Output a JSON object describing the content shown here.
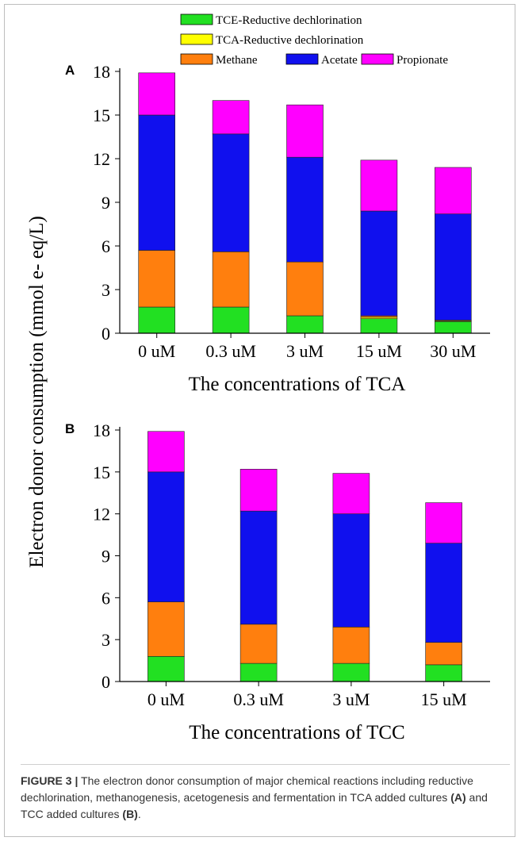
{
  "figure": {
    "y_axis_label": "Electron donor consumption (mmol e- eq/L)",
    "caption_label": "FIGURE 3 |",
    "caption_text_1": " The electron donor consumption of major chemical reactions including reductive dechlorination, methanogenesis, acetogenesis and fermentation in TCA added cultures ",
    "caption_ref_a": "(A)",
    "caption_text_2": " and TCC added cultures ",
    "caption_ref_b": "(B)",
    "caption_text_3": "."
  },
  "colors": {
    "TCE-Reductive dechlorination": "#22e022",
    "TCA-Reductive dechlorination": "#ffff00",
    "Methane": "#ff7f0e",
    "Acetate": "#1010ee",
    "Propionate": "#ff00ff"
  },
  "legend": [
    {
      "name": "TCE-Reductive dechlorination"
    },
    {
      "name": "TCA-Reductive dechlorination"
    },
    {
      "name": "Methane"
    },
    {
      "name": "Acetate"
    },
    {
      "name": "Propionate"
    }
  ],
  "chart_data": [
    {
      "type": "bar",
      "stacked": true,
      "panel_label": "A",
      "xlabel": "The concentrations of TCA",
      "categories": [
        "0 uM",
        "0.3 uM",
        "3 uM",
        "15 uM",
        "30 uM"
      ],
      "yticks": [
        "0",
        "3",
        "6",
        "9",
        "12",
        "15",
        "18"
      ],
      "ylim": [
        0,
        18
      ],
      "series": [
        {
          "name": "TCE-Reductive dechlorination",
          "values": [
            1.8,
            1.8,
            1.2,
            1.0,
            0.8
          ]
        },
        {
          "name": "TCA-Reductive dechlorination",
          "values": [
            0,
            0,
            0,
            0.1,
            0.05
          ]
        },
        {
          "name": "Methane",
          "values": [
            3.9,
            3.8,
            3.7,
            0.1,
            0.05
          ]
        },
        {
          "name": "Acetate",
          "values": [
            9.3,
            8.1,
            7.2,
            7.2,
            7.3
          ]
        },
        {
          "name": "Propionate",
          "values": [
            2.9,
            2.3,
            3.6,
            3.5,
            3.2
          ]
        }
      ]
    },
    {
      "type": "bar",
      "stacked": true,
      "panel_label": "B",
      "xlabel": "The concentrations of TCC",
      "categories": [
        "0 uM",
        "0.3 uM",
        "3 uM",
        "15 uM"
      ],
      "yticks": [
        "0",
        "3",
        "6",
        "9",
        "12",
        "15",
        "18"
      ],
      "ylim": [
        0,
        18
      ],
      "series": [
        {
          "name": "TCE-Reductive dechlorination",
          "values": [
            1.8,
            1.3,
            1.3,
            1.2
          ]
        },
        {
          "name": "Methane",
          "values": [
            3.9,
            2.8,
            2.6,
            1.6
          ]
        },
        {
          "name": "Acetate",
          "values": [
            9.3,
            8.1,
            8.1,
            7.1
          ]
        },
        {
          "name": "Propionate",
          "values": [
            2.9,
            3.0,
            2.9,
            2.9
          ]
        }
      ]
    }
  ]
}
